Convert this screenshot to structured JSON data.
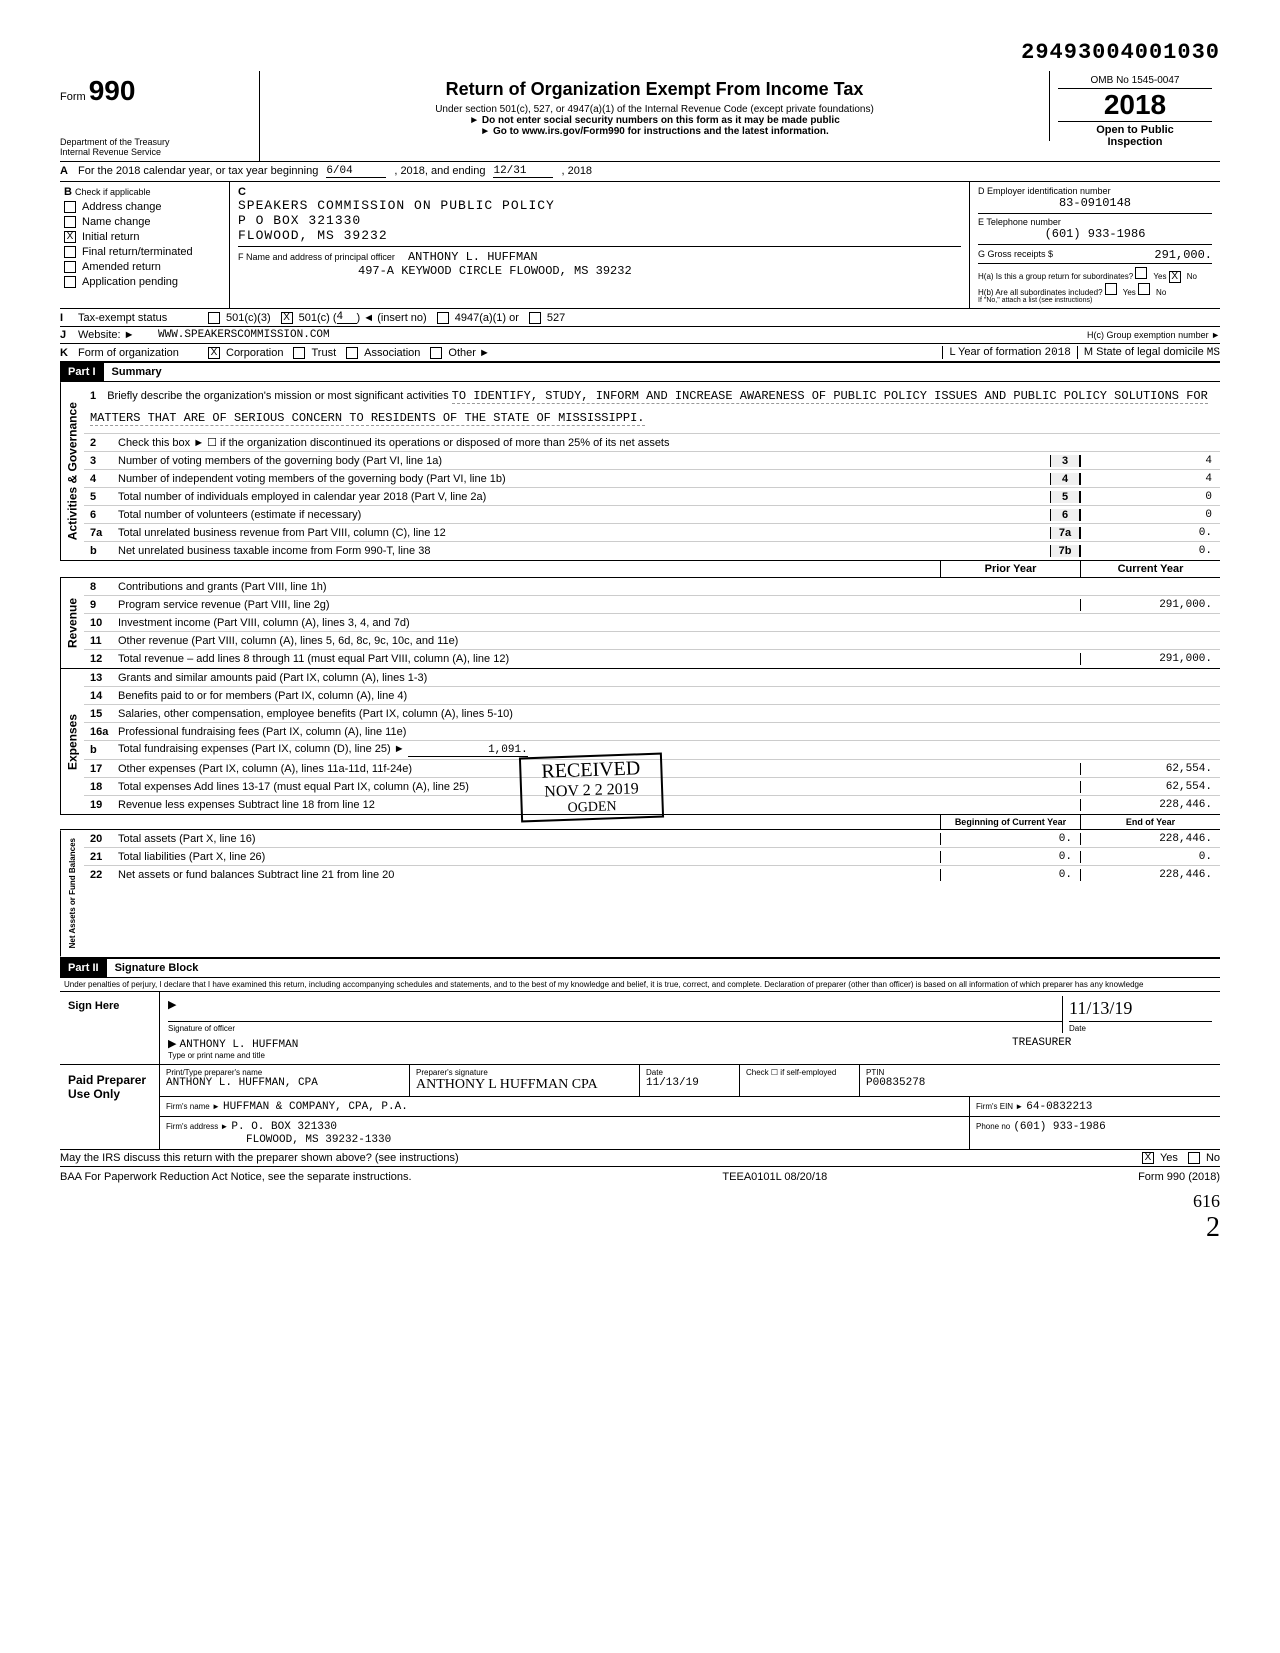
{
  "doc_id": "29493004001030",
  "omb": "OMB No 1545-0047",
  "form_label": "Form",
  "form_number": "990",
  "year": "2018",
  "title": "Return of Organization Exempt From Income Tax",
  "subtitle1": "Under section 501(c), 527, or 4947(a)(1) of the Internal Revenue Code (except private foundations)",
  "subtitle2": "► Do not enter social security numbers on this form as it may be made public",
  "subtitle3": "► Go to www.irs.gov/Form990 for instructions and the latest information.",
  "department": "Department of the Treasury",
  "irs": "Internal Revenue Service",
  "open_public": "Open to Public",
  "inspection": "Inspection",
  "row_a": {
    "label": "A",
    "text": "For the 2018 calendar year, or tax year beginning",
    "begin": "6/04",
    "mid": ", 2018, and ending",
    "end": "12/31",
    "endyear": ", 2018"
  },
  "section_b": {
    "b_label": "B",
    "check_label": "Check if applicable",
    "c_label": "C",
    "checkboxes": {
      "address_change": "Address change",
      "name_change": "Name change",
      "initial_return": "Initial return",
      "final_return": "Final return/terminated",
      "amended_return": "Amended return",
      "application_pending": "Application pending"
    },
    "org_name": "SPEAKERS COMMISSION ON PUBLIC POLICY",
    "addr1": "P O BOX 321330",
    "addr2": "FLOWOOD, MS 39232",
    "d_label": "D  Employer identification number",
    "ein": "83-0910148",
    "e_label": "E  Telephone number",
    "phone": "(601) 933-1986",
    "g_label": "G  Gross receipts $",
    "gross": "291,000.",
    "f_label": "F  Name and address of principal officer",
    "officer_name": "ANTHONY L. HUFFMAN",
    "officer_addr": "497-A KEYWOOD CIRCLE FLOWOOD, MS 39232",
    "ha_label": "H(a) Is this a group return for subordinates?",
    "hb_label": "H(b) Are all subordinates included?",
    "hb_note": "If \"No,\" attach a list (see instructions)",
    "yes": "Yes",
    "no": "No"
  },
  "row_i": {
    "lbl": "I",
    "text": "Tax-exempt status",
    "opts": [
      "501(c)(3)",
      "501(c) (",
      "4",
      ") ◄ (insert no)",
      "4947(a)(1) or",
      "527"
    ]
  },
  "row_j": {
    "lbl": "J",
    "text": "Website: ►",
    "val": "WWW.SPEAKERSCOMMISSION.COM",
    "hc": "H(c) Group exemption number ►"
  },
  "row_k": {
    "lbl": "K",
    "text": "Form of organization",
    "opts": [
      "Corporation",
      "Trust",
      "Association",
      "Other ►"
    ],
    "l_label": "L Year of formation",
    "l_val": "2018",
    "m_label": "M State of legal domicile",
    "m_val": "MS"
  },
  "part1": {
    "header": "Part I",
    "title": "Summary"
  },
  "mission": {
    "num": "1",
    "prompt": "Briefly describe the organization's mission or most significant activities",
    "text": "TO IDENTIFY, STUDY, INFORM AND INCREASE AWARENESS OF PUBLIC POLICY ISSUES AND PUBLIC POLICY SOLUTIONS FOR MATTERS THAT ARE OF SERIOUS CONCERN TO RESIDENTS OF THE STATE OF MISSISSIPPI."
  },
  "governance_label": "Activities & Governance",
  "gov_lines": [
    {
      "n": "2",
      "t": "Check this box ► ☐ if the organization discontinued its operations or disposed of more than 25% of its net assets"
    },
    {
      "n": "3",
      "t": "Number of voting members of the governing body (Part VI, line 1a)",
      "box": "3",
      "v": "4"
    },
    {
      "n": "4",
      "t": "Number of independent voting members of the governing body (Part VI, line 1b)",
      "box": "4",
      "v": "4"
    },
    {
      "n": "5",
      "t": "Total number of individuals employed in calendar year 2018 (Part V, line 2a)",
      "box": "5",
      "v": "0"
    },
    {
      "n": "6",
      "t": "Total number of volunteers (estimate if necessary)",
      "box": "6",
      "v": "0"
    },
    {
      "n": "7a",
      "t": "Total unrelated business revenue from Part VIII, column (C), line 12",
      "box": "7a",
      "v": "0."
    },
    {
      "n": "b",
      "t": "Net unrelated business taxable income from Form 990-T, line 38",
      "box": "7b",
      "v": "0."
    }
  ],
  "revenue_label": "Revenue",
  "col_prior": "Prior Year",
  "col_current": "Current Year",
  "rev_lines": [
    {
      "n": "8",
      "t": "Contributions and grants (Part VIII, line 1h)",
      "prior": "",
      "cur": ""
    },
    {
      "n": "9",
      "t": "Program service revenue (Part VIII, line 2g)",
      "prior": "",
      "cur": "291,000."
    },
    {
      "n": "10",
      "t": "Investment income (Part VIII, column (A), lines 3, 4, and 7d)",
      "prior": "",
      "cur": ""
    },
    {
      "n": "11",
      "t": "Other revenue (Part VIII, column (A), lines 5, 6d, 8c, 9c, 10c, and 11e)",
      "prior": "",
      "cur": ""
    },
    {
      "n": "12",
      "t": "Total revenue – add lines 8 through 11 (must equal Part VIII, column (A), line 12)",
      "prior": "",
      "cur": "291,000."
    }
  ],
  "expenses_label": "Expenses",
  "exp_lines": [
    {
      "n": "13",
      "t": "Grants and similar amounts paid (Part IX, column (A), lines 1-3)",
      "prior": "",
      "cur": ""
    },
    {
      "n": "14",
      "t": "Benefits paid to or for members (Part IX, column (A), line 4)",
      "prior": "",
      "cur": ""
    },
    {
      "n": "15",
      "t": "Salaries, other compensation, employee benefits (Part IX, column (A), lines 5-10)",
      "prior": "",
      "cur": ""
    },
    {
      "n": "16a",
      "t": "Professional fundraising fees (Part IX, column (A), line 11e)",
      "prior": "",
      "cur": ""
    },
    {
      "n": "b",
      "t": "Total fundraising expenses (Part IX, column (D), line 25) ►",
      "inline": "1,091."
    },
    {
      "n": "17",
      "t": "Other expenses (Part IX, column (A), lines 11a-11d, 11f-24e)",
      "prior": "",
      "cur": "62,554."
    },
    {
      "n": "18",
      "t": "Total expenses Add lines 13-17 (must equal Part IX, column (A), line 25)",
      "prior": "",
      "cur": "62,554."
    },
    {
      "n": "19",
      "t": "Revenue less expenses Subtract line 18 from line 12",
      "prior": "",
      "cur": "228,446."
    }
  ],
  "netassets_label": "Net Assets or Fund Balances",
  "col_begin": "Beginning of Current Year",
  "col_end": "End of Year",
  "net_lines": [
    {
      "n": "20",
      "t": "Total assets (Part X, line 16)",
      "prior": "0.",
      "cur": "228,446."
    },
    {
      "n": "21",
      "t": "Total liabilities (Part X, line 26)",
      "prior": "0.",
      "cur": "0."
    },
    {
      "n": "22",
      "t": "Net assets or fund balances Subtract line 21 from line 20",
      "prior": "0.",
      "cur": "228,446."
    }
  ],
  "received": {
    "text": "RECEIVED",
    "date": "NOV 2 2 2019",
    "where": "OGDEN"
  },
  "part2": {
    "header": "Part II",
    "title": "Signature Block"
  },
  "perjury": "Under penalties of perjury, I declare that I have examined this return, including accompanying schedules and statements, and to the best of my knowledge and belief, it is true, correct, and complete. Declaration of preparer (other than officer) is based on all information of which preparer has any knowledge",
  "sign": {
    "here": "Sign Here",
    "sig_hint": "Signature of officer",
    "date_hint": "Date",
    "date": "11/13/19",
    "name": "ANTHONY L. HUFFMAN",
    "title": "TREASURER",
    "name_hint": "Type or print name and title"
  },
  "preparer": {
    "label": "Paid Preparer Use Only",
    "name_hint": "Print/Type preparer's name",
    "name": "ANTHONY L. HUFFMAN, CPA",
    "sig_hint": "Preparer's signature",
    "sig": "ANTHONY L HUFFMAN CPA",
    "date_hint": "Date",
    "date": "11/13/19",
    "check_hint": "Check ☐ if self-employed",
    "ptin_hint": "PTIN",
    "ptin": "P00835278",
    "firm_hint": "Firm's name ►",
    "firm": "HUFFMAN & COMPANY, CPA, P.A.",
    "addr_hint": "Firm's address ►",
    "addr1": "P. O. BOX 321330",
    "addr2": "FLOWOOD, MS 39232-1330",
    "ein_hint": "Firm's EIN ►",
    "ein": "64-0832213",
    "phone_hint": "Phone no",
    "phone": "(601) 933-1986"
  },
  "irs_discuss": "May the IRS discuss this return with the preparer shown above? (see instructions)",
  "footer": {
    "baa": "BAA  For Paperwork Reduction Act Notice, see the separate instructions.",
    "code": "TEEA0101L 08/20/18",
    "form": "Form 990 (2018)"
  },
  "hand1": "616",
  "hand2": "2"
}
